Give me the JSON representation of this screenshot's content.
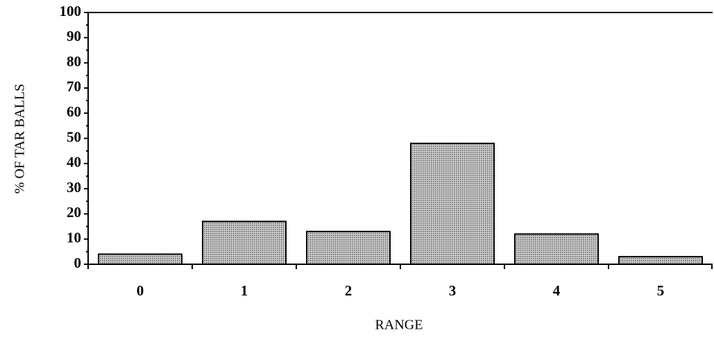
{
  "chart_data": {
    "type": "bar",
    "xlabel": "RANGE",
    "ylabel": "% OF TAR BALLS",
    "categories": [
      "0",
      "1",
      "2",
      "3",
      "4",
      "5"
    ],
    "values": [
      4,
      17,
      13,
      48,
      12,
      3
    ],
    "color": "#9a9a9a",
    "ylim": [
      0,
      100
    ],
    "yticks": [
      0,
      10,
      20,
      30,
      40,
      50,
      60,
      70,
      80,
      90,
      100
    ],
    "minor_yticks": [
      5,
      15,
      25,
      35,
      45,
      55,
      65,
      75,
      85,
      95
    ],
    "grid": false
  }
}
